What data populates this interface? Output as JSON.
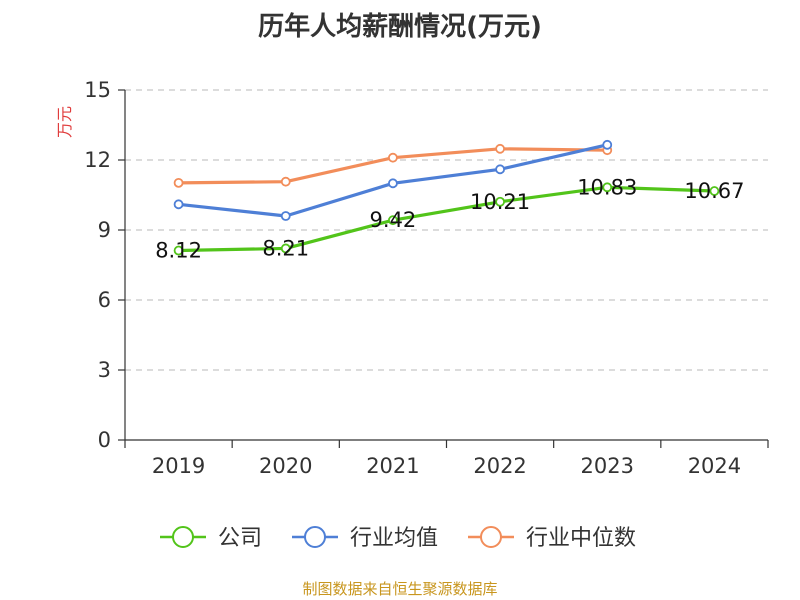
{
  "chart_data": {
    "type": "line",
    "title": "历年人均薪酬情况(万元)",
    "ylabel": "万元",
    "xlabel": "",
    "ylim": [
      0,
      15
    ],
    "yticks": [
      0,
      3,
      6,
      9,
      12,
      15
    ],
    "grid": true,
    "legend_position": "bottom",
    "categories": [
      "2019",
      "2020",
      "2021",
      "2022",
      "2023",
      "2024"
    ],
    "series": [
      {
        "name": "公司",
        "color": "#52c41a",
        "values": [
          8.12,
          8.21,
          9.42,
          10.21,
          10.83,
          10.67
        ],
        "labels": [
          "8.12",
          "8.21",
          "9.42",
          "10.21",
          "10.83",
          "10.67"
        ]
      },
      {
        "name": "行业均值",
        "color": "#4e7fd6",
        "values": [
          10.1,
          9.6,
          11.0,
          11.6,
          12.65,
          null
        ]
      },
      {
        "name": "行业中位数",
        "color": "#f28d5a",
        "values": [
          11.02,
          11.07,
          12.1,
          12.48,
          12.42,
          null
        ]
      }
    ]
  },
  "footer": {
    "source": "制图数据来自恒生聚源数据库"
  }
}
